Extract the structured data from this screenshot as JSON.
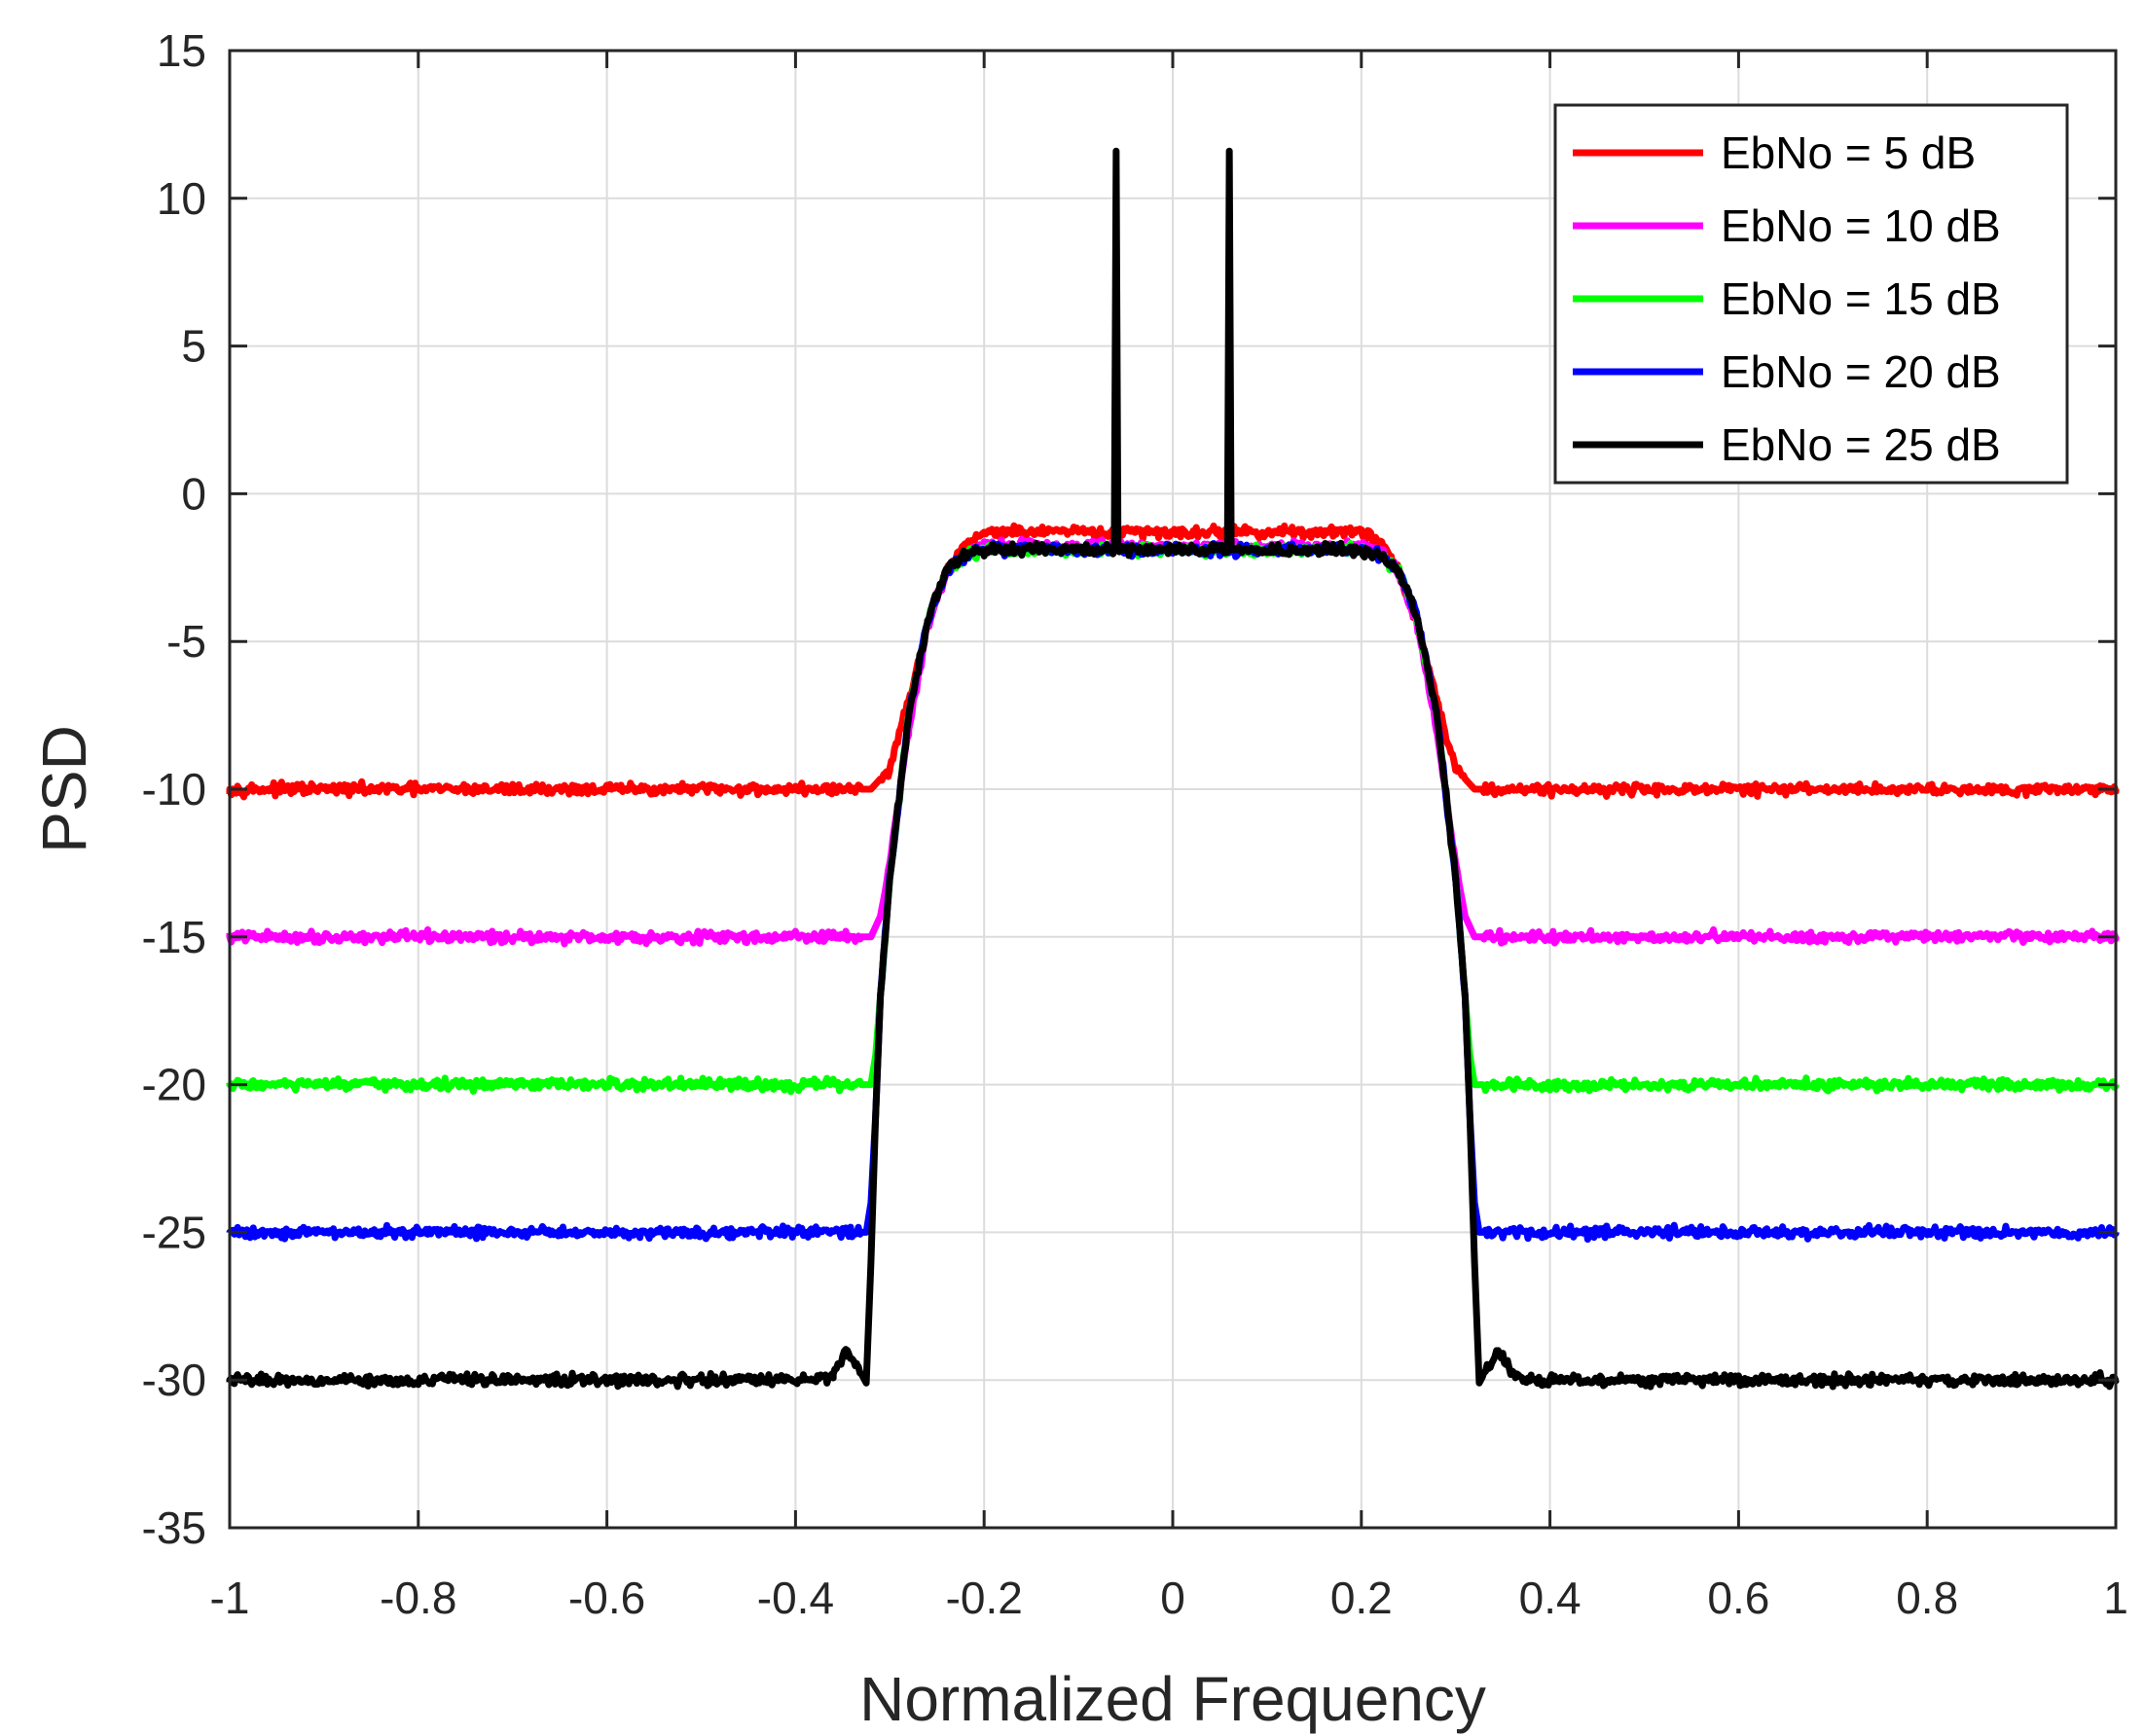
{
  "chart_data": {
    "type": "line",
    "title": "",
    "xlabel": "Normalized Frequency",
    "ylabel": "PSD",
    "xlim": [
      -1,
      1
    ],
    "ylim": [
      -35,
      15
    ],
    "grid": true,
    "legend_position": "top-right",
    "xticks": [
      -1,
      -0.8,
      -0.6,
      -0.4,
      -0.2,
      0,
      0.2,
      0.4,
      0.6,
      0.8,
      1
    ],
    "xtick_labels": [
      "-1",
      "-0.8",
      "-0.6",
      "-0.4",
      "-0.2",
      "0",
      "0.2",
      "0.4",
      "0.6",
      "0.8",
      "1"
    ],
    "yticks": [
      -35,
      -30,
      -25,
      -20,
      -15,
      -10,
      -5,
      0,
      5,
      10,
      15
    ],
    "ytick_labels": [
      "-35",
      "-30",
      "-25",
      "-20",
      "-15",
      "-10",
      "-5",
      "0",
      "5",
      "10",
      "15"
    ],
    "series": [
      {
        "name": "EbNo = 5 dB",
        "color": "#ff0000",
        "x": [
          -1,
          -0.32,
          -0.3,
          -0.28,
          -0.26,
          -0.24,
          -0.22,
          -0.2,
          -0.1,
          0,
          0.1,
          0.2,
          0.22,
          0.24,
          0.26,
          0.28,
          0.3,
          0.32,
          1
        ],
        "y": [
          -10,
          -10,
          -9.3,
          -7,
          -4.5,
          -2.6,
          -1.7,
          -1.3,
          -1.3,
          -1.3,
          -1.3,
          -1.3,
          -1.6,
          -2.6,
          -4.5,
          -7,
          -9.3,
          -10,
          -10
        ]
      },
      {
        "name": "EbNo = 10 dB",
        "color": "#ff00ff",
        "x": [
          -1,
          -0.32,
          -0.31,
          -0.3,
          -0.28,
          -0.26,
          -0.24,
          -0.22,
          -0.2,
          0,
          0.2,
          0.22,
          0.24,
          0.26,
          0.28,
          0.3,
          0.31,
          0.32,
          1
        ],
        "y": [
          -15,
          -15,
          -14.3,
          -12.5,
          -8,
          -4.5,
          -2.7,
          -2,
          -1.7,
          -1.8,
          -1.8,
          -2,
          -2.7,
          -4.5,
          -8,
          -12.5,
          -14.3,
          -15,
          -15
        ]
      },
      {
        "name": "EbNo = 15 dB",
        "color": "#00ff00",
        "x": [
          -1,
          -0.32,
          -0.315,
          -0.31,
          -0.3,
          -0.28,
          -0.26,
          -0.24,
          -0.22,
          -0.2,
          0,
          0.2,
          0.22,
          0.24,
          0.26,
          0.28,
          0.3,
          0.31,
          0.315,
          0.32,
          1
        ],
        "y": [
          -20,
          -20,
          -19,
          -17,
          -13,
          -7.5,
          -4.3,
          -2.6,
          -2.1,
          -1.9,
          -1.9,
          -1.9,
          -2.1,
          -2.6,
          -4.3,
          -7.5,
          -13,
          -17,
          -19,
          -20,
          -20
        ]
      },
      {
        "name": "EbNo = 20 dB",
        "color": "#0000ff",
        "x": [
          -1,
          -0.325,
          -0.32,
          -0.315,
          -0.31,
          -0.3,
          -0.28,
          -0.26,
          -0.24,
          -0.22,
          -0.2,
          0,
          0.2,
          0.22,
          0.24,
          0.26,
          0.28,
          0.3,
          0.31,
          0.315,
          0.32,
          0.325,
          1
        ],
        "y": [
          -25,
          -25,
          -24,
          -21,
          -17,
          -13,
          -7.5,
          -4.3,
          -2.6,
          -2.1,
          -1.9,
          -1.9,
          -1.9,
          -2.1,
          -2.6,
          -4.3,
          -7.5,
          -13,
          -17,
          -21,
          -24,
          -25,
          -25
        ]
      },
      {
        "name": "EbNo = 25 dB",
        "color": "#000000",
        "x": [
          -1,
          -0.38,
          -0.36,
          -0.345,
          -0.335,
          -0.325,
          -0.32,
          -0.315,
          -0.31,
          -0.3,
          -0.28,
          -0.26,
          -0.24,
          -0.22,
          -0.2,
          -0.07,
          -0.062,
          -0.06,
          -0.058,
          -0.05,
          0,
          0.05,
          0.058,
          0.06,
          0.062,
          0.07,
          0.2,
          0.22,
          0.24,
          0.26,
          0.28,
          0.3,
          0.31,
          0.315,
          0.32,
          0.325,
          0.335,
          0.345,
          0.36,
          0.38,
          1
        ],
        "y": [
          -30,
          -30,
          -29.8,
          -29,
          -29.5,
          -30.1,
          -26,
          -21,
          -17,
          -13,
          -7.5,
          -4.3,
          -2.6,
          -2.1,
          -1.9,
          -1.9,
          -1.9,
          11.6,
          -1.9,
          -1.9,
          -1.9,
          -1.9,
          -1.9,
          11.6,
          -1.9,
          -1.9,
          -1.9,
          -2.1,
          -2.6,
          -4.3,
          -7.5,
          -13,
          -17,
          -21,
          -26,
          -30.1,
          -29.5,
          -29,
          -29.8,
          -30,
          -30
        ]
      }
    ]
  }
}
